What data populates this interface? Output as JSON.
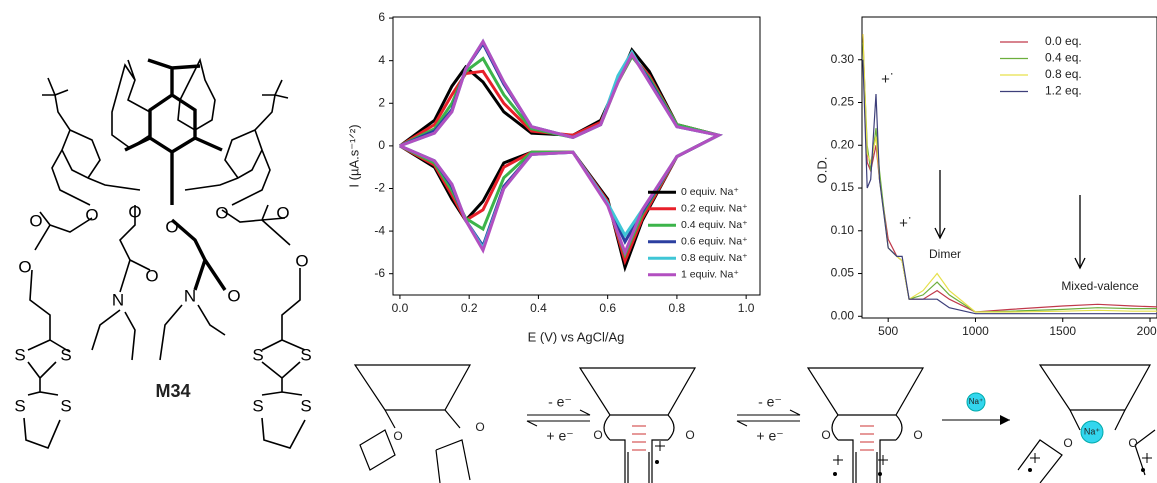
{
  "chart_data": [
    {
      "type": "line",
      "x_label": "E (V) vs AgCl/Ag",
      "y_label": "I (µA.s⁻¹ᐟ²)",
      "x": [
        0,
        0.1,
        0.15,
        0.19,
        0.24,
        0.3,
        0.38,
        0.5,
        0.58,
        0.63,
        0.67,
        0.72,
        0.8,
        0.92,
        0.92,
        0.8,
        0.7,
        0.65,
        0.6,
        0.5,
        0.38,
        0.3,
        0.24,
        0.19,
        0.15,
        0.1,
        0
      ],
      "xlim": [
        -0.02,
        1.04
      ],
      "ylim": [
        -7,
        6.05
      ],
      "xticks": [
        {
          "value": 0,
          "label": "0.0"
        },
        0.2,
        0.4,
        0.6,
        0.8,
        {
          "value": 1,
          "label": "1.0"
        }
      ],
      "yticks": [
        -6,
        -4,
        -2,
        0,
        2,
        4,
        6
      ],
      "grid": false,
      "legend": "lower right",
      "series": [
        {
          "name": "0 equiv. Na⁺",
          "color": "#000000",
          "values": [
            0,
            1.2,
            2.8,
            3.7,
            3.0,
            1.6,
            0.6,
            0.5,
            1.2,
            3.0,
            4.5,
            3.5,
            1.0,
            0.5,
            0.5,
            -0.5,
            -3.5,
            -5.7,
            -2.5,
            -0.3,
            -0.3,
            -0.8,
            -2.6,
            -3.5,
            -2.5,
            -1.0,
            0
          ]
        },
        {
          "name": "0.2 equiv. Na⁺",
          "color": "#e8202a",
          "values": [
            0,
            1.0,
            2.4,
            3.4,
            3.5,
            2.0,
            0.7,
            0.5,
            1.1,
            3.0,
            4.2,
            3.3,
            1.0,
            0.5,
            0.5,
            -0.5,
            -3.4,
            -5.4,
            -2.6,
            -0.3,
            -0.3,
            -1.0,
            -3.0,
            -3.5,
            -2.3,
            -0.9,
            0
          ]
        },
        {
          "name": "0.4 equiv. Na⁺",
          "color": "#3cb44a",
          "values": [
            0,
            0.8,
            2.0,
            3.5,
            4.1,
            2.4,
            0.8,
            0.4,
            1.0,
            3.0,
            4.2,
            3.2,
            1.0,
            0.5,
            0.5,
            -0.5,
            -3.2,
            -5.1,
            -2.7,
            -0.3,
            -0.3,
            -1.5,
            -3.9,
            -3.4,
            -2.1,
            -0.8,
            0
          ]
        },
        {
          "name": "0.6 equiv. Na⁺",
          "color": "#2b3fa0",
          "values": [
            0,
            0.7,
            1.7,
            3.6,
            4.8,
            2.9,
            0.9,
            0.4,
            1.0,
            3.1,
            4.3,
            3.1,
            0.9,
            0.5,
            0.5,
            -0.5,
            -3.1,
            -4.5,
            -2.7,
            -0.3,
            -0.4,
            -1.9,
            -4.7,
            -3.5,
            -1.9,
            -0.7,
            0
          ]
        },
        {
          "name": "0.8 equiv. Na⁺",
          "color": "#3fc6d6",
          "values": [
            0,
            0.6,
            1.6,
            3.6,
            4.9,
            3.0,
            0.9,
            0.4,
            1.0,
            3.3,
            4.4,
            3.0,
            0.9,
            0.5,
            0.5,
            -0.5,
            -3.0,
            -4.2,
            -2.7,
            -0.3,
            -0.4,
            -2.0,
            -4.8,
            -3.5,
            -1.8,
            -0.7,
            0
          ]
        },
        {
          "name": "1 equiv. Na⁺",
          "color": "#b24fc0",
          "values": [
            0,
            0.6,
            1.6,
            3.6,
            4.9,
            3.0,
            0.9,
            0.4,
            1.0,
            3.0,
            4.3,
            3.0,
            0.9,
            0.5,
            0.5,
            -0.5,
            -3.0,
            -5.0,
            -2.8,
            -0.3,
            -0.4,
            -2.0,
            -4.9,
            -3.5,
            -1.8,
            -0.7,
            0
          ]
        }
      ]
    },
    {
      "type": "line",
      "y_label": "O.D.",
      "x": [
        355,
        380,
        400,
        430,
        450,
        500,
        550,
        580,
        620,
        700,
        780,
        850,
        1000,
        1200,
        1500,
        1700,
        1900,
        2040
      ],
      "xlim": [
        350,
        2040
      ],
      "ylim": [
        -0.002,
        0.35
      ],
      "xticks": [
        500,
        1000,
        1500,
        2000
      ],
      "yticks": [
        {
          "value": 0,
          "label": "0.00"
        },
        0.05,
        {
          "value": 0.1,
          "label": "0.10"
        },
        0.15,
        {
          "value": 0.2,
          "label": "0.20"
        },
        0.25,
        {
          "value": 0.3,
          "label": "0.30"
        }
      ],
      "grid": false,
      "legend": "upper right",
      "annotations": [
        "+˙",
        "+˙",
        "Dimer",
        "Mixed-valence"
      ],
      "series": [
        {
          "name": "0.0 eq.",
          "color": "#c0394b",
          "values": [
            0.33,
            0.18,
            0.17,
            0.2,
            0.16,
            0.09,
            0.07,
            0.065,
            0.02,
            0.02,
            0.03,
            0.02,
            0.005,
            0.008,
            0.012,
            0.014,
            0.012,
            0.011
          ]
        },
        {
          "name": "0.4 eq.",
          "color": "#6cae3c",
          "values": [
            0.32,
            0.2,
            0.17,
            0.22,
            0.17,
            0.08,
            0.07,
            0.065,
            0.02,
            0.025,
            0.04,
            0.025,
            0.005,
            0.006,
            0.008,
            0.01,
            0.009,
            0.009
          ]
        },
        {
          "name": "0.8 eq.",
          "color": "#e6e04a",
          "values": [
            0.33,
            0.19,
            0.18,
            0.21,
            0.16,
            0.08,
            0.07,
            0.065,
            0.02,
            0.03,
            0.05,
            0.03,
            0.005,
            0.005,
            0.006,
            0.007,
            0.006,
            0.006
          ]
        },
        {
          "name": "1.2 eq.",
          "color": "#3d3f7a",
          "values": [
            0.3,
            0.15,
            0.16,
            0.26,
            0.16,
            0.08,
            0.07,
            0.07,
            0.02,
            0.02,
            0.02,
            0.01,
            0.003,
            0.003,
            0.003,
            0.003,
            0.003,
            0.003
          ]
        }
      ]
    }
  ],
  "structure": {
    "compound": "M34",
    "atoms": [
      "O",
      "O",
      "O",
      "S",
      "S",
      "S",
      "S",
      "O",
      "O",
      "N",
      "O",
      "O",
      "N",
      "O",
      "O",
      "O",
      "S",
      "S",
      "S",
      "S"
    ]
  },
  "scheme": {
    "steps": [
      "- e⁻",
      "+ e⁻",
      "- e⁻",
      "+ e⁻"
    ],
    "ion": "Na⁺",
    "atoms": [
      "O",
      "O",
      "O",
      "O",
      "O",
      "O",
      "O",
      "O"
    ]
  }
}
